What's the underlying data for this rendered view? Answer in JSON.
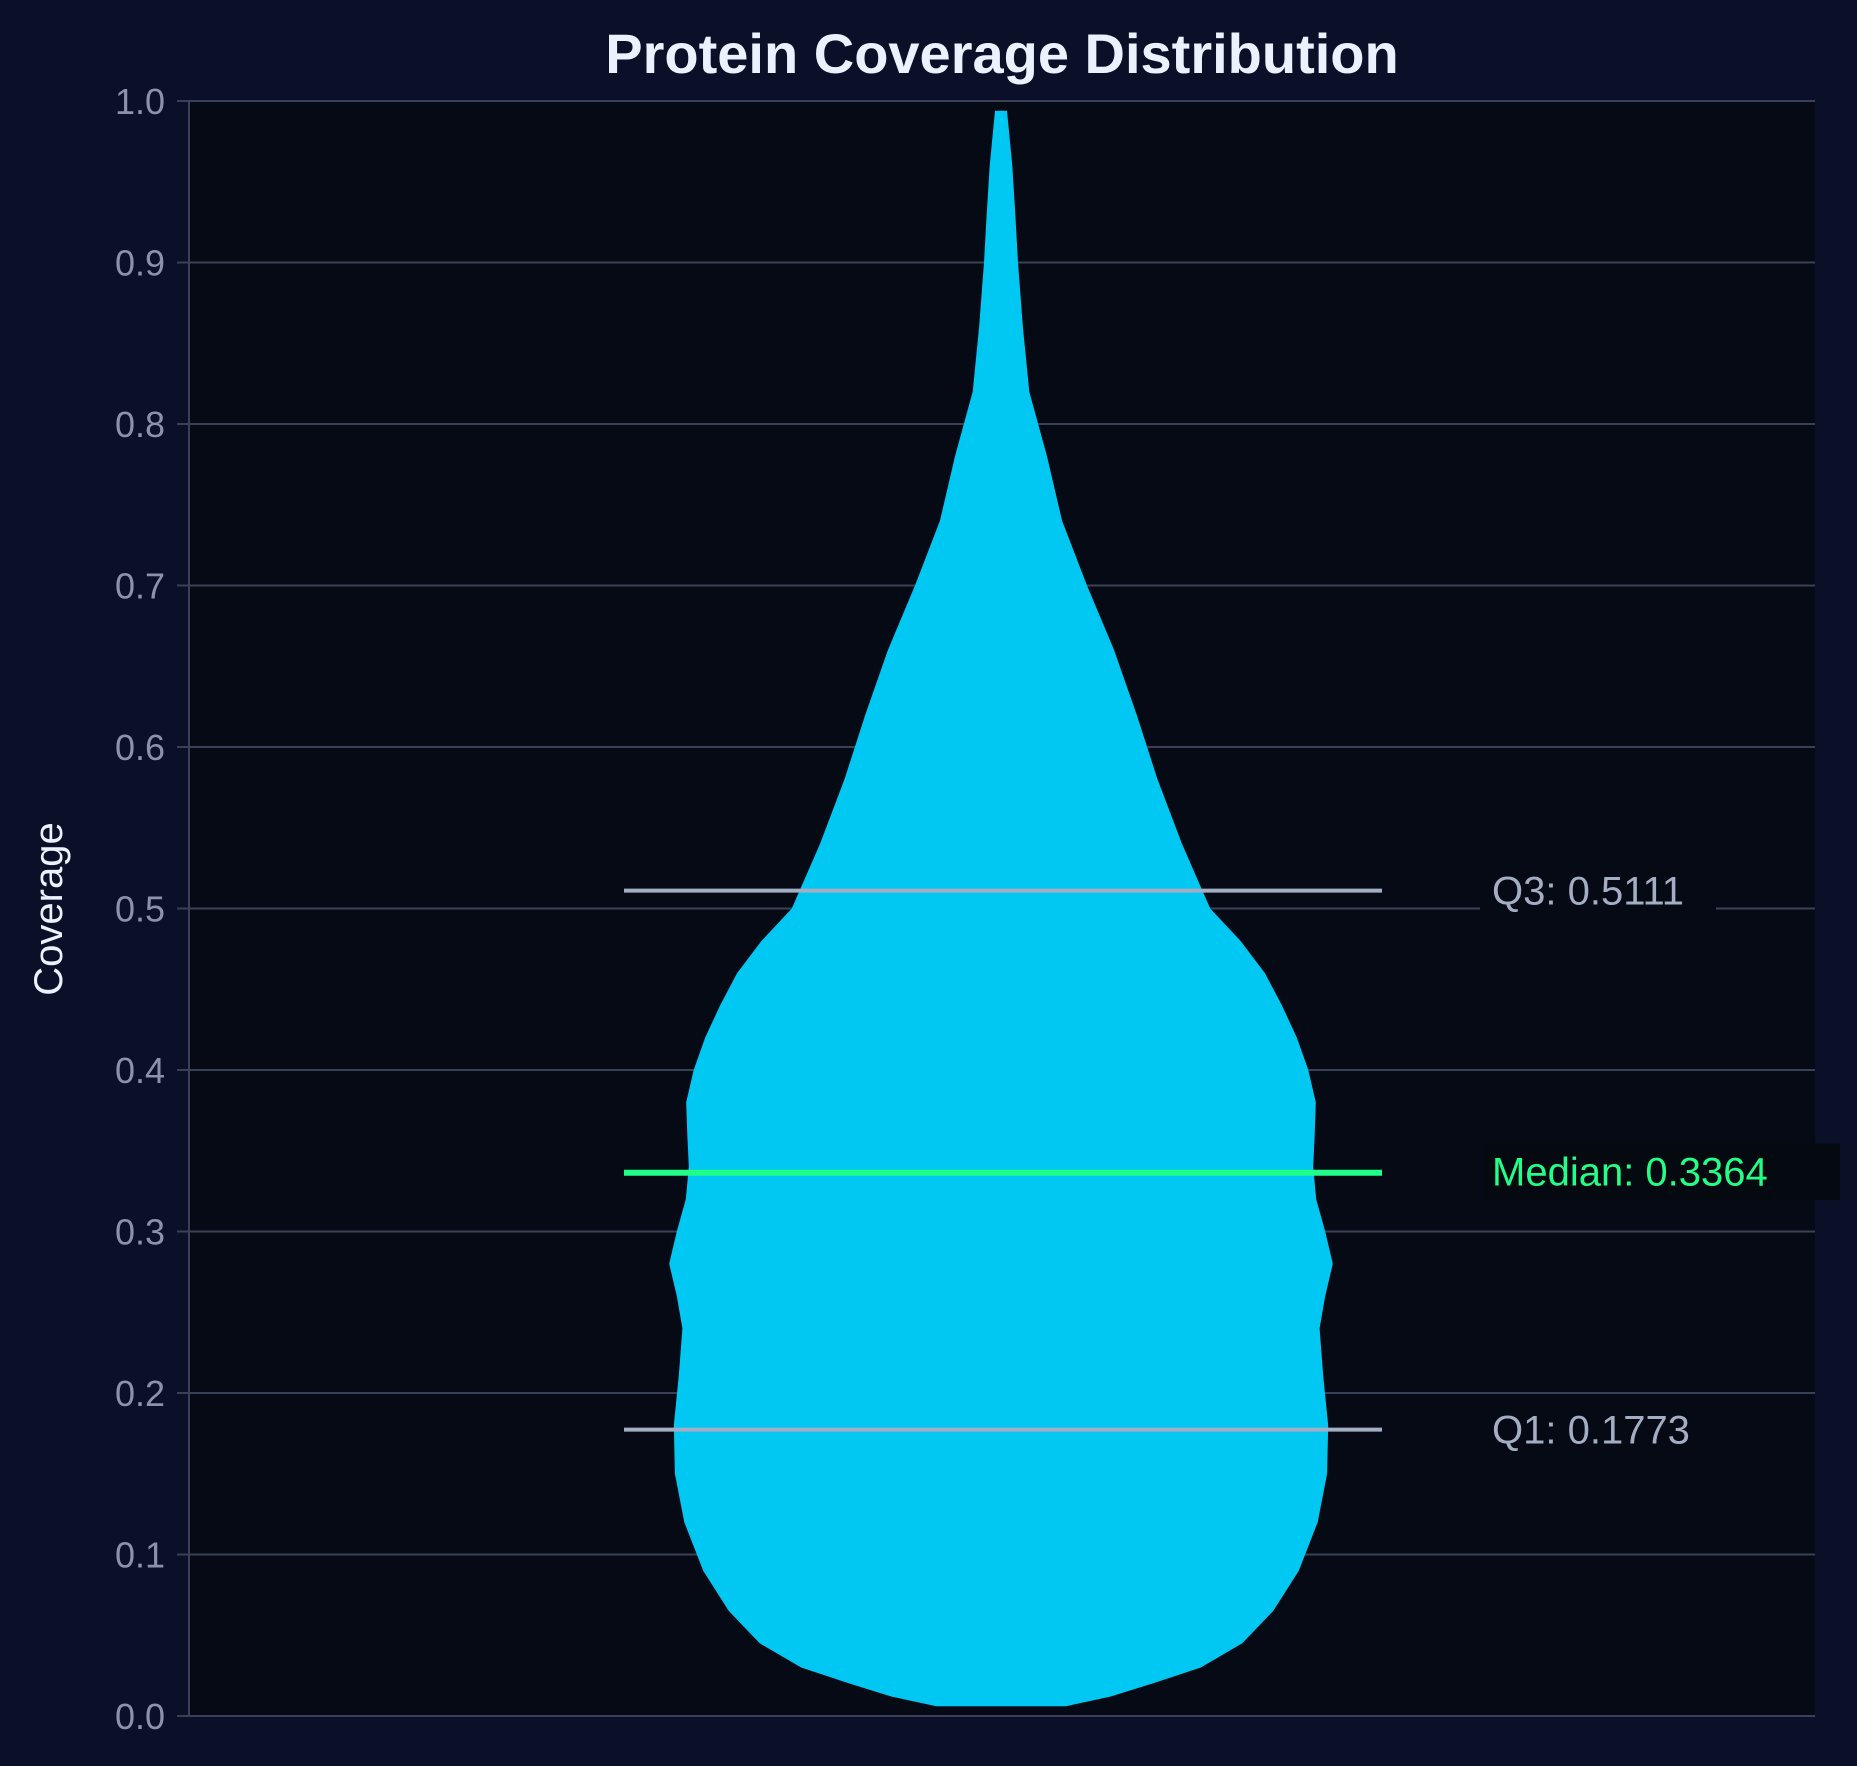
{
  "chart_data": {
    "type": "violin",
    "title": "Protein Coverage Distribution",
    "xlabel": "",
    "ylabel": "Coverage",
    "ylim": [
      0,
      1
    ],
    "yticks": [
      "0.0",
      "0.1",
      "0.2",
      "0.3",
      "0.4",
      "0.5",
      "0.6",
      "0.7",
      "0.8",
      "0.9",
      "1.0"
    ],
    "grid": true,
    "density_profile": [
      {
        "y": 0.006,
        "half_width": 0.172
      },
      {
        "y": 0.012,
        "half_width": 0.29
      },
      {
        "y": 0.02,
        "half_width": 0.4
      },
      {
        "y": 0.03,
        "half_width": 0.53
      },
      {
        "y": 0.045,
        "half_width": 0.64
      },
      {
        "y": 0.065,
        "half_width": 0.722
      },
      {
        "y": 0.09,
        "half_width": 0.79
      },
      {
        "y": 0.12,
        "half_width": 0.84
      },
      {
        "y": 0.15,
        "half_width": 0.865
      },
      {
        "y": 0.18,
        "half_width": 0.868
      },
      {
        "y": 0.21,
        "half_width": 0.855
      },
      {
        "y": 0.24,
        "half_width": 0.845
      },
      {
        "y": 0.26,
        "half_width": 0.86
      },
      {
        "y": 0.28,
        "half_width": 0.88
      },
      {
        "y": 0.3,
        "half_width": 0.86
      },
      {
        "y": 0.32,
        "half_width": 0.836
      },
      {
        "y": 0.34,
        "half_width": 0.828
      },
      {
        "y": 0.36,
        "half_width": 0.832
      },
      {
        "y": 0.38,
        "half_width": 0.835
      },
      {
        "y": 0.4,
        "half_width": 0.815
      },
      {
        "y": 0.42,
        "half_width": 0.785
      },
      {
        "y": 0.44,
        "half_width": 0.745
      },
      {
        "y": 0.46,
        "half_width": 0.7
      },
      {
        "y": 0.48,
        "half_width": 0.635
      },
      {
        "y": 0.5,
        "half_width": 0.555
      },
      {
        "y": 0.54,
        "half_width": 0.48
      },
      {
        "y": 0.58,
        "half_width": 0.415
      },
      {
        "y": 0.62,
        "half_width": 0.36
      },
      {
        "y": 0.66,
        "half_width": 0.3
      },
      {
        "y": 0.7,
        "half_width": 0.228
      },
      {
        "y": 0.74,
        "half_width": 0.162
      },
      {
        "y": 0.78,
        "half_width": 0.122
      },
      {
        "y": 0.82,
        "half_width": 0.075
      },
      {
        "y": 0.86,
        "half_width": 0.058
      },
      {
        "y": 0.9,
        "half_width": 0.045
      },
      {
        "y": 0.93,
        "half_width": 0.038
      },
      {
        "y": 0.96,
        "half_width": 0.03
      },
      {
        "y": 0.994,
        "half_width": 0.016
      }
    ],
    "quartiles": {
      "q1": 0.1773,
      "median": 0.3364,
      "q3": 0.5111
    },
    "annotations": {
      "q1": "Q1: 0.1773",
      "median": "Median: 0.3364",
      "q3": "Q3: 0.5111"
    },
    "colors": {
      "background": "#0b1029",
      "plot_background": "#060a14",
      "violin": "#00c8f2",
      "median": "#22ff88",
      "quartile": "#a3aec4",
      "grid": "#3a4156",
      "tick_text": "#8b93a8",
      "title_text": "#eaf2ff",
      "ylabel_text": "#eaf2ff"
    }
  }
}
